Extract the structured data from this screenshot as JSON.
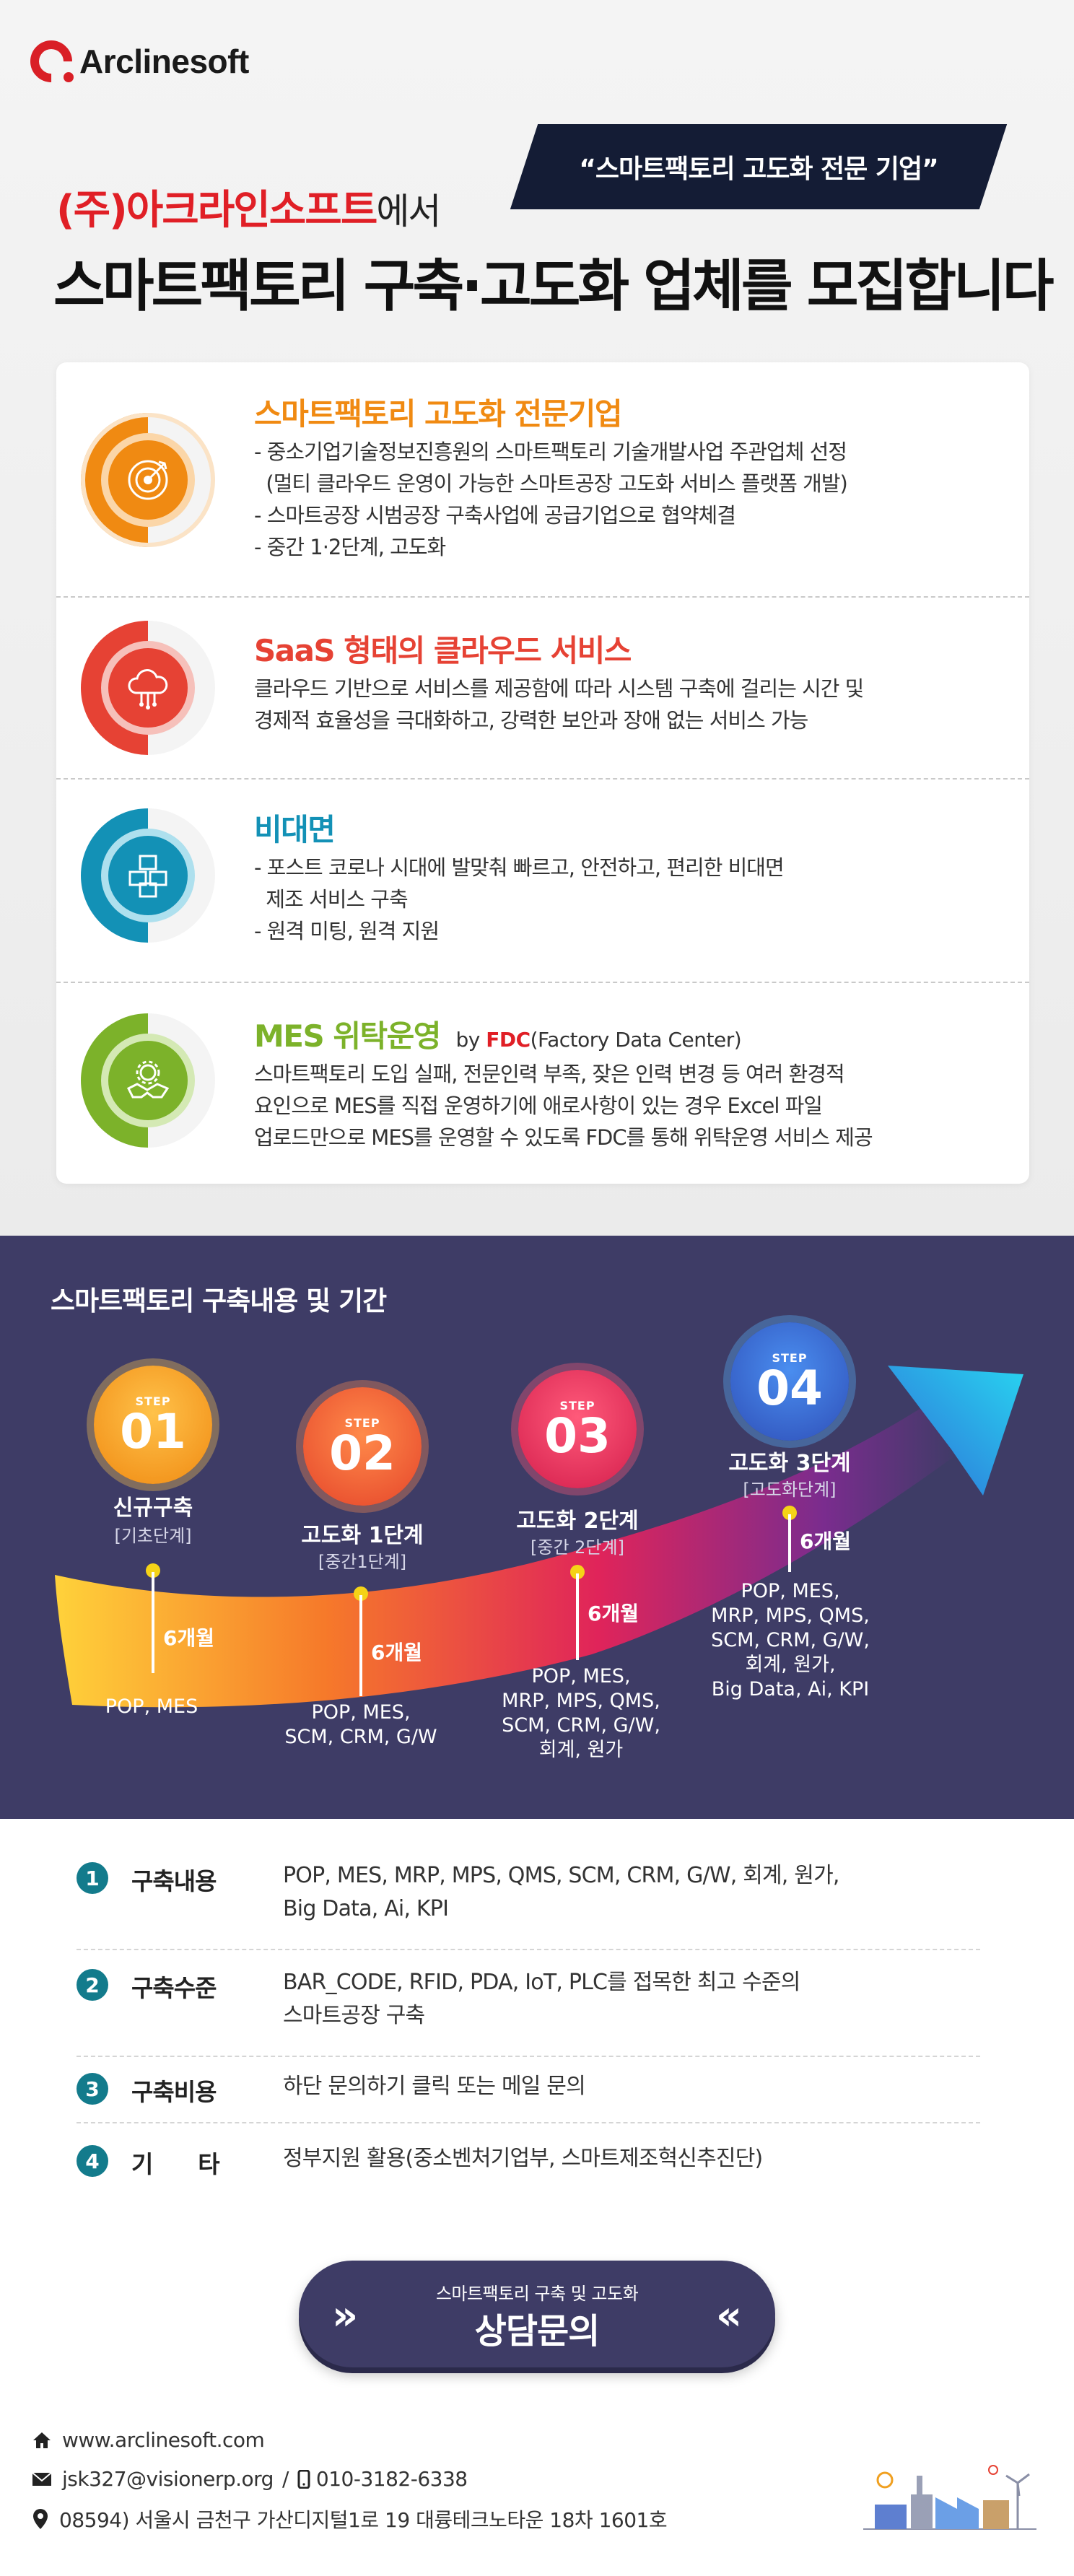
{
  "brand": {
    "name": "Arclinesoft",
    "color": "#d91f26"
  },
  "hero": {
    "badge": "“스마트팩토리 고도화 전문 기업”",
    "company": "(주)아크라인소프트",
    "company_suffix": "에서",
    "headline": "스마트팩토리 구축·고도화 업체를 모집합니다"
  },
  "features": [
    {
      "icon": "target-icon",
      "color": "#f08a12",
      "title": "스마트팩토리 고도화 전문기업",
      "body": "- 중소기업기술정보진흥원의 스마트팩토리 기술개발사업 주관업체 선정\n  (멀티 클라우드 운영이 가능한 스마트공장 고도화 서비스 플랫폼 개발)\n- 스마트공장 시범공장 구축사업에 공급기업으로 협약체결\n- 중간 1·2단계, 고도화"
    },
    {
      "icon": "cloud-icon",
      "color": "#e64234",
      "title": "SaaS 형태의 클라우드 서비스",
      "body": "클라우드 기반으로 서비스를 제공함에 따라 시스템 구축에 걸리는 시간 및\n경제적 효율성을 극대화하고, 강력한 보안과 장애 없는 서비스 가능"
    },
    {
      "icon": "cubes-icon",
      "color": "#1391b6",
      "title": "비대면",
      "body": "- 포스트 코로나 시대에 발맞춰 빠르고, 안전하고, 편리한 비대면\n  제조 서비스 구축\n- 원격 미팅, 원격 지원"
    },
    {
      "icon": "handshake-gear-icon",
      "color": "#7cb22a",
      "title": "MES 위탁운영",
      "by": "by",
      "by_brand": "FDC",
      "by_rest": "(Factory Data Center)",
      "body": "스마트팩토리 도입 실패, 전문인력 부족, 잦은 인력 변경 등 여러 환경적\n요인으로 MES를 직접 운영하기에 애로사항이 있는 경우 Excel 파일\n업로드만으로 MES를 운영할 수 있도록 FDC를 통해 위탁운영 서비스 제공"
    }
  ],
  "steps_section": {
    "title": "스마트팩토리 구축내용 및 기간",
    "step_label": "STEP",
    "steps": [
      {
        "num": "01",
        "name": "신규구축",
        "sub": "[기초단계]",
        "systems": "POP, MES",
        "duration": "6개월"
      },
      {
        "num": "02",
        "name": "고도화 1단계",
        "sub": "[중간1단계]",
        "systems": "POP, MES,\nSCM, CRM, G/W",
        "duration": "6개월"
      },
      {
        "num": "03",
        "name": "고도화 2단계",
        "sub": "[중간 2단계]",
        "systems": "POP, MES,\nMRP, MPS, QMS,\nSCM, CRM, G/W,\n회계, 원가",
        "duration": "6개월"
      },
      {
        "num": "04",
        "name": "고도화 3단계",
        "sub": "[고도화단계]",
        "systems": "POP, MES,\nMRP, MPS, QMS,\nSCM, CRM, G/W,\n회계, 원가,\nBig Data, Ai, KPI",
        "duration": "6개월"
      }
    ]
  },
  "info": [
    {
      "num": "1",
      "label": "구축내용",
      "text": "POP, MES, MRP, MPS, QMS, SCM, CRM, G/W, 회계, 원가,\nBig Data, Ai, KPI"
    },
    {
      "num": "2",
      "label": "구축수준",
      "text": "BAR_CODE, RFID, PDA, IoT, PLC를 접목한 최고 수준의\n스마트공장 구축"
    },
    {
      "num": "3",
      "label": "구축비용",
      "text": "하단 문의하기 클릭 또는 메일 문의"
    },
    {
      "num": "4",
      "label": "기      타",
      "text": "정부지원 활용(중소벤처기업부, 스마트제조혁신추진단)"
    }
  ],
  "cta": {
    "sub": "스마트팩토리 구축 및 고도화",
    "main": "상담문의",
    "left": "»",
    "right": "«"
  },
  "footer": {
    "website": "www.arclinesoft.com",
    "email": "jsk327@visionerp.org",
    "separator": "/",
    "phone": "010-3182-6338",
    "address": "08594) 서울시 금천구 가산디지털1로 19 대륭테크노타운 18차 1601호"
  }
}
